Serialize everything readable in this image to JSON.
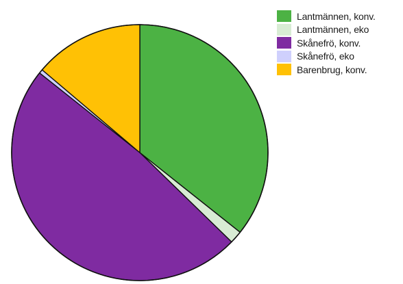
{
  "chart_data": {
    "type": "pie",
    "title": "",
    "start_angle_deg": 0,
    "direction": "clockwise",
    "legend_position": "top-right",
    "slices": [
      {
        "label": "Lantmännen, konv.",
        "value": 35.7,
        "color": "#4cb244"
      },
      {
        "label": "Lantmännen, eko",
        "value": 1.6,
        "color": "#d8ecd4"
      },
      {
        "label": "Skånefrö, konv.",
        "value": 48.4,
        "color": "#7f2ba1"
      },
      {
        "label": "Skånefrö, eko",
        "value": 0.5,
        "color": "#cfd0fd"
      },
      {
        "label": "Barenbrug, konv.",
        "value": 13.8,
        "color": "#ffc105"
      }
    ]
  }
}
